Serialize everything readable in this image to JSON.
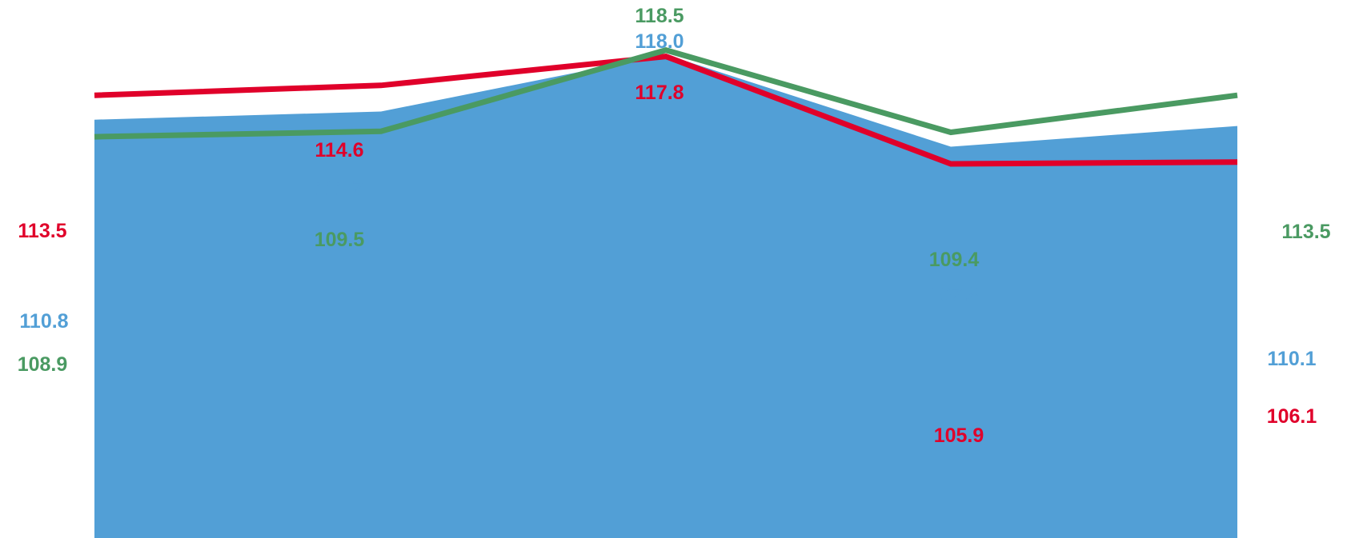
{
  "colors": {
    "blue_area": "#529fd6",
    "red_line": "#e0002a",
    "green_line": "#4a9a62"
  },
  "chart_data": {
    "type": "line",
    "title": "",
    "xlabel": "",
    "ylabel": "",
    "x": [
      1,
      2,
      3,
      4,
      5
    ],
    "ylim": [
      100,
      120
    ],
    "grid": false,
    "legend": "none",
    "series": [
      {
        "type": "area",
        "color": "#529fd6",
        "values": [
          110.8,
          111.7,
          118.0,
          107.8,
          110.1
        ]
      },
      {
        "type": "line",
        "color": "#e0002a",
        "values": [
          113.5,
          114.6,
          117.8,
          105.9,
          106.1
        ]
      },
      {
        "type": "line",
        "color": "#4a9a62",
        "values": [
          108.9,
          109.5,
          118.5,
          109.4,
          113.5
        ]
      }
    ],
    "data_labels": {
      "area": [
        "110.8",
        "111.7",
        "118.0",
        "107.8",
        "110.1"
      ],
      "red": [
        "113.5",
        "114.6",
        "117.8",
        "105.9",
        "106.1"
      ],
      "green": [
        "108.9",
        "109.5",
        "118.5",
        "109.4",
        "113.5"
      ]
    }
  }
}
